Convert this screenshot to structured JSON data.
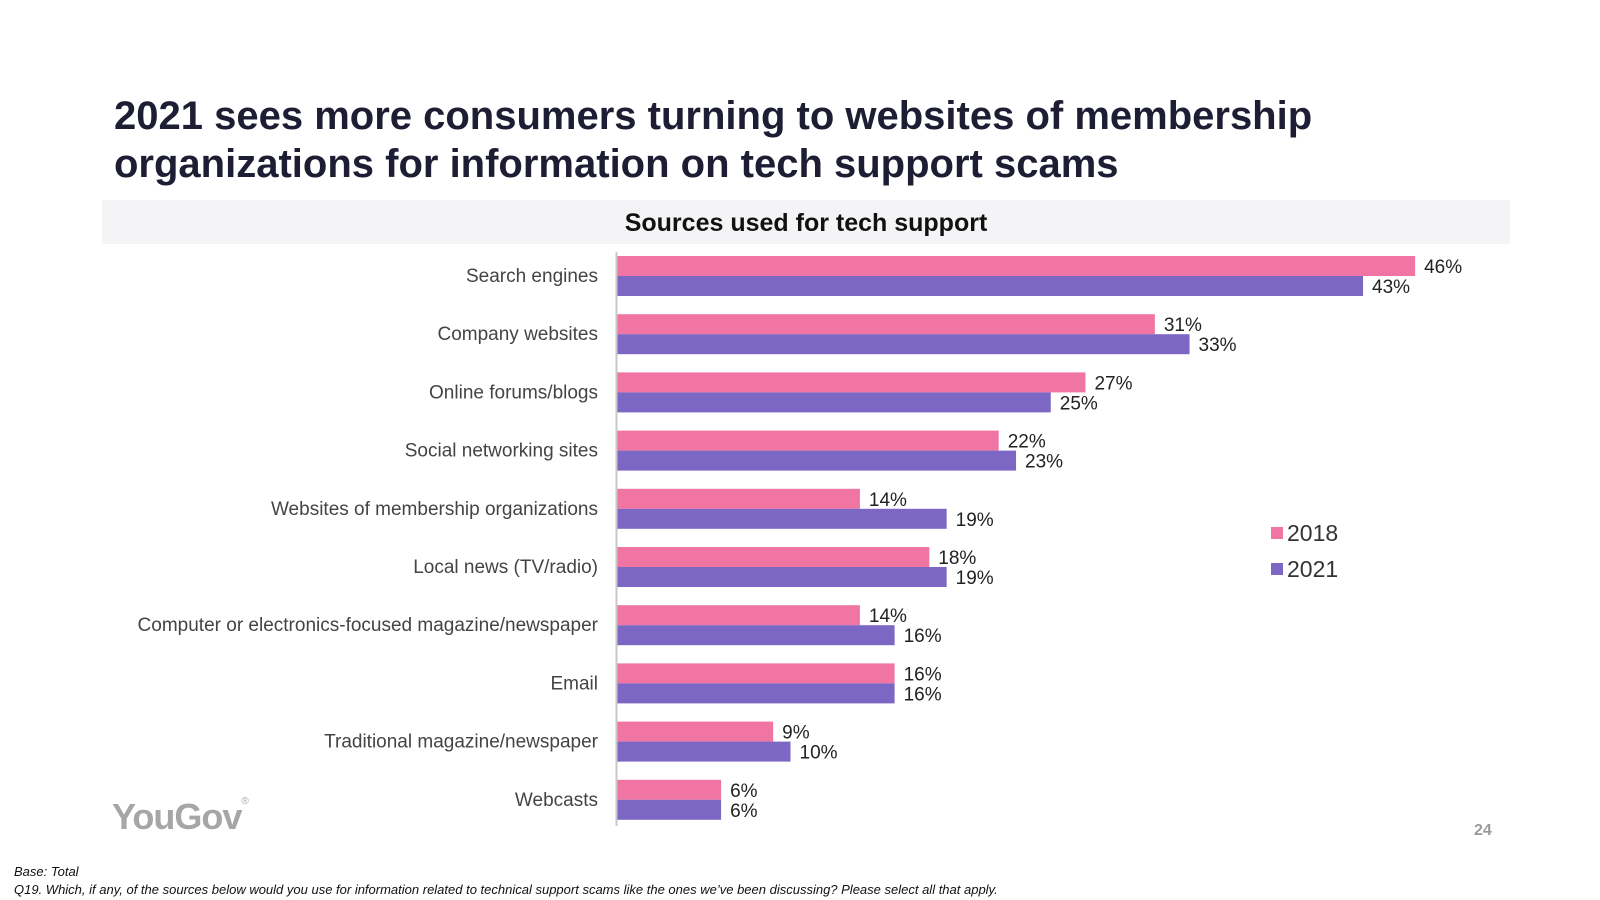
{
  "slide": {
    "title": "2021 sees more consumers turning to websites of membership organizations for information on tech support scams",
    "logo": "YouGov",
    "page_number": "24",
    "footnote_base": "Base: Total",
    "footnote_question": "Q19. Which, if any, of the sources below would you use for information related to technical support scams like the ones we’ve been discussing? Please select all that apply."
  },
  "chart_data": {
    "type": "bar",
    "orientation": "horizontal",
    "title": "Sources used for tech support",
    "categories": [
      "Search engines",
      "Company websites",
      "Online forums/blogs",
      "Social networking sites",
      "Websites of membership organizations",
      "Local news (TV/radio)",
      "Computer or electronics-focused magazine/newspaper",
      "Email",
      "Traditional magazine/newspaper",
      "Webcasts"
    ],
    "series": [
      {
        "name": "2018",
        "color": "#f075a3",
        "values": [
          46,
          31,
          27,
          22,
          14,
          18,
          14,
          16,
          9,
          6
        ]
      },
      {
        "name": "2021",
        "color": "#7d67c4",
        "values": [
          43,
          33,
          25,
          23,
          19,
          19,
          16,
          16,
          10,
          6
        ]
      }
    ],
    "value_suffix": "%",
    "xlim": [
      0,
      50
    ],
    "grid": false,
    "legend_position": "right"
  }
}
